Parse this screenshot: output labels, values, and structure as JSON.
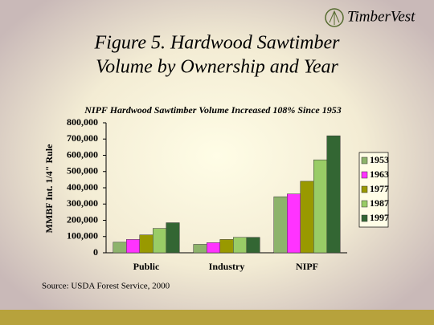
{
  "logo": "TimberVest",
  "chart_data": {
    "type": "bar",
    "title": [
      "Figure 5.  Hardwood Sawtimber",
      "Volume by Ownership and Year"
    ],
    "subtitle": "NIPF Hardwood Sawtimber Volume Increased 108%  Since 1953",
    "y_label": "MMBF Int. 1/4\" Rule",
    "source": "Source: USDA Forest Service, 2000",
    "categories": [
      "Public",
      "Industry",
      "NIPF"
    ],
    "series": [
      {
        "name": "1953",
        "color": "#8db36b",
        "values": [
          65000,
          52000,
          345000
        ]
      },
      {
        "name": "1963",
        "color": "#ff33ff",
        "values": [
          82000,
          62000,
          362000
        ]
      },
      {
        "name": "1977",
        "color": "#999900",
        "values": [
          110000,
          82000,
          440000
        ]
      },
      {
        "name": "1987",
        "color": "#99cc66",
        "values": [
          150000,
          95000,
          572000
        ]
      },
      {
        "name": "1997",
        "color": "#336633",
        "values": [
          185000,
          95000,
          720000
        ]
      }
    ],
    "ylim": [
      0,
      800000
    ],
    "yticks": [
      0,
      {
        "value": 100000,
        "label": "100,000"
      },
      {
        "value": 200000,
        "label": "200,000"
      },
      {
        "value": 300000,
        "label": "300,000"
      },
      {
        "value": 400000,
        "label": "400,000"
      },
      {
        "value": 500000,
        "label": "500,000"
      },
      {
        "value": 600000,
        "label": "600,000"
      },
      {
        "value": 700000,
        "label": "700,000"
      },
      {
        "value": 800000,
        "label": "800,000"
      }
    ],
    "legend": "right"
  }
}
